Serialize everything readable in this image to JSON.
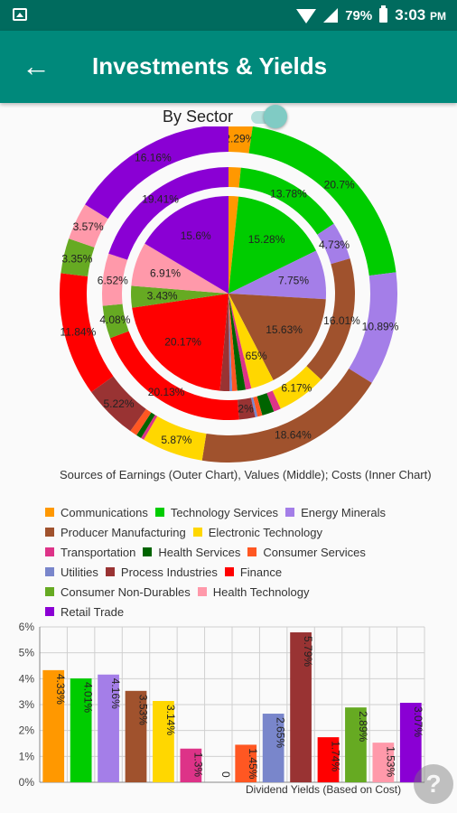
{
  "status_bar": {
    "battery": "79%",
    "time": "3:03",
    "ampm": "PM"
  },
  "app_bar": {
    "title": "Investments & Yields",
    "back_icon": "arrow-back-icon"
  },
  "toggle": {
    "label": "By Sector",
    "on": true
  },
  "colors": {
    "Communications": "#ff9800",
    "Technology Services": "#00cc00",
    "Energy Minerals": "#a47ee8",
    "Producer Manufacturing": "#a0522d",
    "Electronic Technology": "#ffd700",
    "Transportation": "#dd3388",
    "Health Services": "#006400",
    "Consumer Services": "#ff5722",
    "Utilities": "#7986cb",
    "Process Industries": "#993333",
    "Finance": "#ff0000",
    "Consumer Non-Durables": "#66aa22",
    "Health Technology": "#ff99aa",
    "Retail Trade": "#8a00d4"
  },
  "chart_data": [
    {
      "type": "pie",
      "subtype": "nested-donut",
      "title": "Sources of Earnings (Outer Chart), Values (Middle); Costs (Inner Chart)",
      "categories": [
        "Communications",
        "Technology Services",
        "Energy Minerals",
        "Producer Manufacturing",
        "Electronic Technology",
        "Transportation",
        "Health Services",
        "Consumer Services",
        "Utilities",
        "Process Industries",
        "Finance",
        "Consumer Non-Durables",
        "Health Technology",
        "Retail Trade"
      ],
      "series": [
        {
          "name": "Sources of Earnings",
          "ring": "outer",
          "values": [
            2.29,
            20.7,
            10.89,
            18.64,
            5.87,
            0.3,
            0.5,
            0.7,
            0.0,
            5.22,
            11.84,
            3.35,
            3.57,
            16.16
          ]
        },
        {
          "name": "Values",
          "ring": "middle",
          "values": [
            1.53,
            13.78,
            4.73,
            16.01,
            6.17,
            0.9,
            1.5,
            0.6,
            0.3,
            2.0,
            20.13,
            4.08,
            6.52,
            19.41
          ]
        },
        {
          "name": "Costs",
          "ring": "inner",
          "values": [
            1.57,
            15.28,
            7.75,
            15.63,
            3.65,
            0.9,
            1.3,
            0.8,
            0.4,
            1.5,
            20.17,
            3.43,
            6.91,
            15.6
          ]
        }
      ],
      "legend": "bottom"
    },
    {
      "type": "bar",
      "title": "Dividend Yields (Based on Cost)",
      "categories": [
        "Communications",
        "Technology Services",
        "Energy Minerals",
        "Producer Manufacturing",
        "Electronic Technology",
        "Transportation",
        "Health Services",
        "Consumer Services",
        "Utilities",
        "Process Industries",
        "Finance",
        "Consumer Non-Durables",
        "Health Technology",
        "Retail Trade"
      ],
      "values": [
        4.33,
        4.01,
        4.16,
        3.53,
        3.14,
        1.3,
        0.0,
        1.45,
        2.65,
        5.79,
        1.74,
        2.89,
        1.53,
        3.07
      ],
      "value_labels": [
        "4.33%",
        "4.01%",
        "4.16%",
        "3.53%",
        "3.14%",
        "1.3%",
        "0",
        "1.45%",
        "2.65%",
        "5.79%",
        "1.74%",
        "2.89%",
        "1.53%",
        "3.07%"
      ],
      "ylim": [
        0,
        6
      ],
      "yticks": [
        "0%",
        "1%",
        "2%",
        "3%",
        "4%",
        "5%",
        "6%"
      ],
      "grid": true
    }
  ],
  "help_fab": {
    "label": "?"
  }
}
